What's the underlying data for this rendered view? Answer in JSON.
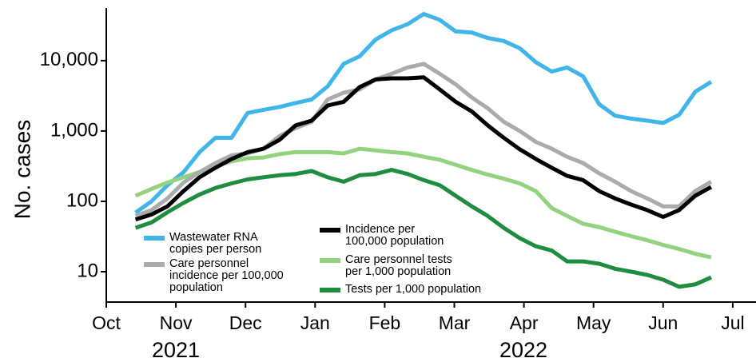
{
  "chart_data": {
    "type": "line",
    "y_label": "No. cases",
    "log_y": true,
    "ylim": [
      3.7,
      56000
    ],
    "yticks": [
      10,
      100,
      {
        "value": 1000,
        "label": "1,000"
      },
      {
        "value": 10000,
        "label": "10,000"
      }
    ],
    "xlim": [
      0,
      9.32
    ],
    "xticks": [
      {
        "value": 0,
        "label": "Oct"
      },
      {
        "value": 1,
        "label": "Nov"
      },
      {
        "value": 2,
        "label": "Dec"
      },
      {
        "value": 3,
        "label": "Jan"
      },
      {
        "value": 4,
        "label": "Feb"
      },
      {
        "value": 5,
        "label": "Mar"
      },
      {
        "value": 6,
        "label": "Apr"
      },
      {
        "value": 7,
        "label": "May"
      },
      {
        "value": 8,
        "label": "Jun"
      },
      {
        "value": 9,
        "label": "Jul"
      }
    ],
    "year_labels": [
      "2021",
      "2022"
    ],
    "x": [
      0.42,
      0.65,
      0.88,
      1.11,
      1.34,
      1.57,
      1.8,
      2.03,
      2.26,
      2.49,
      2.72,
      2.95,
      3.18,
      3.41,
      3.64,
      3.87,
      4.1,
      4.33,
      4.56,
      4.79,
      5.02,
      5.25,
      5.48,
      5.71,
      5.94,
      6.17,
      6.4,
      6.62,
      6.85,
      7.08,
      7.31,
      7.54,
      7.77,
      8.0,
      8.23,
      8.46,
      8.69
    ],
    "series": [
      {
        "name": "Wastewater RNA\ncopies per person",
        "color": "#3fb5e9",
        "values": [
          69,
          100,
          170,
          260,
          500,
          800,
          800,
          1800,
          2000,
          2200,
          2500,
          2800,
          4300,
          9000,
          11500,
          20000,
          27000,
          33000,
          46000,
          38000,
          26000,
          25000,
          21000,
          19000,
          15000,
          9500,
          7000,
          8000,
          6000,
          2400,
          1650,
          1500,
          1400,
          1300,
          1700,
          3600,
          5000
        ]
      },
      {
        "name": "Care personnel\nincidence per 100,000\npopulation",
        "color": "#ababab",
        "values": [
          62,
          75,
          110,
          185,
          260,
          350,
          450,
          480,
          560,
          850,
          1100,
          1350,
          2800,
          3500,
          3900,
          5400,
          6500,
          8000,
          9000,
          6500,
          4600,
          3000,
          2100,
          1350,
          1000,
          700,
          560,
          430,
          350,
          250,
          190,
          140,
          110,
          85,
          85,
          140,
          190
        ]
      },
      {
        "name": "Incidence per\n100,000 population",
        "color": "#000000",
        "values": [
          55,
          65,
          85,
          140,
          220,
          300,
          400,
          500,
          560,
          750,
          1200,
          1400,
          2300,
          2600,
          4200,
          5400,
          5600,
          5600,
          5800,
          3900,
          2600,
          1900,
          1200,
          800,
          550,
          400,
          300,
          230,
          200,
          140,
          110,
          90,
          75,
          60,
          75,
          120,
          160
        ]
      },
      {
        "name": "Care personnel tests\nper 1,000 population",
        "color": "#93d37f",
        "values": [
          120,
          150,
          185,
          220,
          260,
          320,
          370,
          410,
          420,
          470,
          500,
          500,
          500,
          480,
          560,
          530,
          500,
          480,
          430,
          390,
          330,
          280,
          240,
          210,
          180,
          140,
          80,
          62,
          48,
          43,
          37,
          32,
          28,
          24,
          21,
          18,
          16
        ]
      },
      {
        "name": "Tests per 1,000 population",
        "color": "#1f8d3f",
        "values": [
          42,
          50,
          70,
          95,
          125,
          155,
          180,
          205,
          220,
          235,
          245,
          270,
          220,
          190,
          235,
          245,
          280,
          245,
          200,
          170,
          120,
          85,
          62,
          42,
          30,
          23,
          20,
          14,
          14,
          13,
          11,
          10,
          9,
          7.7,
          6.1,
          6.6,
          8.3
        ]
      }
    ]
  }
}
